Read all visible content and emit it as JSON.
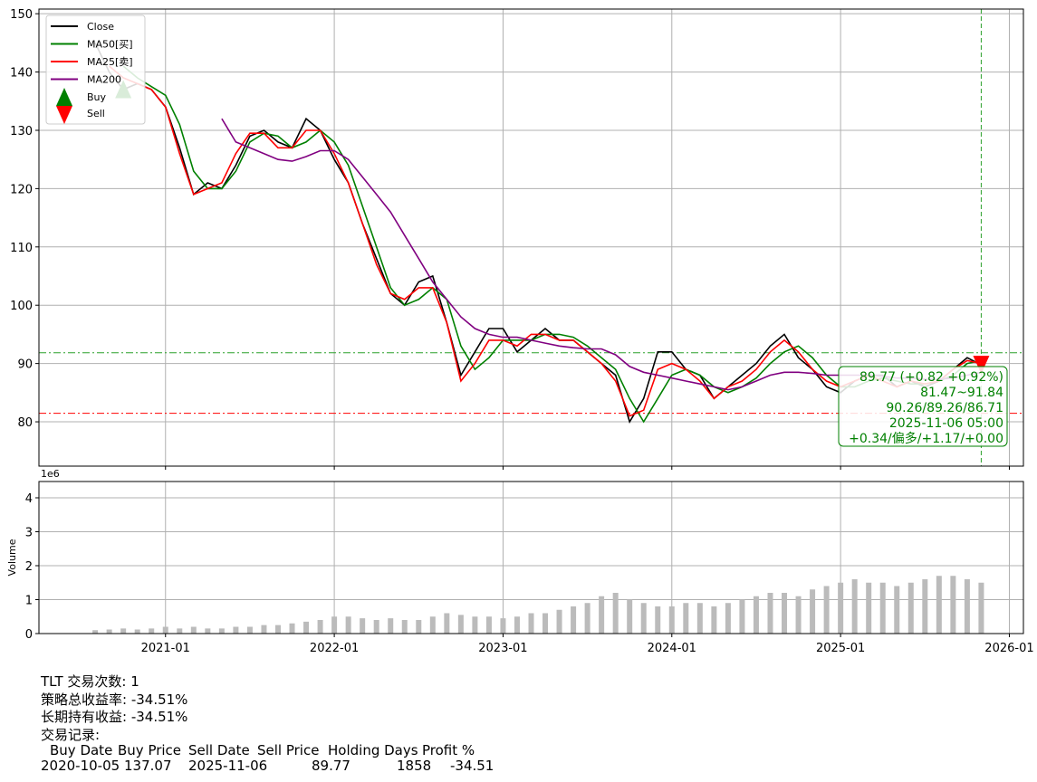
{
  "chart_data": [
    {
      "type": "line",
      "x": [
        "2020-08",
        "2020-09",
        "2020-10",
        "2020-11",
        "2020-12",
        "2021-01",
        "2021-02",
        "2021-03",
        "2021-04",
        "2021-05",
        "2021-06",
        "2021-07",
        "2021-08",
        "2021-09",
        "2021-10",
        "2021-11",
        "2021-12",
        "2022-01",
        "2022-02",
        "2022-03",
        "2022-04",
        "2022-05",
        "2022-06",
        "2022-07",
        "2022-08",
        "2022-09",
        "2022-10",
        "2022-11",
        "2022-12",
        "2023-01",
        "2023-02",
        "2023-03",
        "2023-04",
        "2023-05",
        "2023-06",
        "2023-07",
        "2023-08",
        "2023-09",
        "2023-10",
        "2023-11",
        "2023-12",
        "2024-01",
        "2024-02",
        "2024-03",
        "2024-04",
        "2024-05",
        "2024-06",
        "2024-07",
        "2024-08",
        "2024-09",
        "2024-10",
        "2024-11",
        "2024-12",
        "2025-01",
        "2025-02",
        "2025-03",
        "2025-04",
        "2025-05",
        "2025-06",
        "2025-07",
        "2025-08",
        "2025-09",
        "2025-10",
        "2025-11"
      ],
      "series": [
        {
          "name": "Close",
          "color": "#000000",
          "values": [
            145,
            140,
            137,
            138,
            137,
            134,
            127,
            119,
            121,
            120,
            124,
            129,
            130,
            128,
            127,
            132,
            130,
            125,
            121,
            114,
            108,
            102,
            100,
            104,
            105,
            97,
            88,
            92,
            96,
            96,
            92,
            94,
            96,
            94,
            94,
            92,
            90,
            88,
            80,
            84,
            92,
            92,
            89,
            88,
            84,
            86,
            88,
            90,
            93,
            95,
            91,
            89,
            86,
            85,
            87,
            88,
            88,
            86,
            87,
            86,
            87,
            89,
            91,
            89.77
          ]
        },
        {
          "name": "MA50[买]",
          "color": "#008000",
          "values": [
            null,
            null,
            141,
            139,
            137.5,
            136,
            131,
            123,
            120,
            120,
            123,
            128,
            129.5,
            129,
            127,
            128,
            130,
            128,
            124,
            117,
            110,
            103,
            100,
            101,
            103,
            101,
            93,
            89,
            91,
            94,
            94,
            94,
            95,
            95,
            94.5,
            93,
            91,
            89,
            84,
            80,
            84,
            88,
            89,
            88,
            86,
            85,
            86,
            87.5,
            90,
            92,
            93,
            91,
            88,
            86,
            86,
            87,
            87.5,
            87,
            86.5,
            86.5,
            87,
            88,
            90,
            90.5
          ]
        },
        {
          "name": "MA25[卖]",
          "color": "#ff0000",
          "values": [
            null,
            141,
            139,
            138,
            137,
            134,
            126,
            119,
            120,
            121,
            126,
            129.5,
            129.5,
            127,
            127,
            130,
            130,
            126,
            121,
            114,
            107,
            102,
            101,
            103,
            103,
            97,
            87,
            90,
            94,
            94,
            93,
            95,
            95,
            94,
            94,
            92,
            90,
            87,
            81,
            82,
            89,
            90,
            89,
            87,
            84,
            86,
            87,
            89,
            92,
            94,
            92,
            89,
            87,
            86,
            87,
            88,
            87,
            86,
            87,
            86.5,
            87,
            89,
            90.5,
            90
          ]
        },
        {
          "name": "MA200",
          "color": "#800080",
          "values": [
            null,
            null,
            null,
            null,
            null,
            null,
            null,
            null,
            null,
            132,
            128,
            127,
            126,
            125,
            124.7,
            125.5,
            126.5,
            126.5,
            125,
            122,
            119,
            116,
            112,
            108,
            104,
            101,
            98,
            96,
            95,
            94.5,
            94.5,
            94,
            93.5,
            93,
            92.7,
            92.5,
            92.5,
            91.5,
            89.5,
            88.5,
            88,
            87.5,
            87,
            86.5,
            86,
            85.5,
            86,
            87,
            88,
            88.5,
            88.5,
            88.3,
            88,
            88,
            88,
            88,
            87.8,
            87.5,
            87.5,
            87.3,
            87.3,
            87.5,
            88,
            88.5
          ]
        }
      ],
      "markers": [
        {
          "name": "Buy",
          "color": "#008000",
          "x": [
            "2020-10"
          ],
          "values": [
            137.07
          ]
        },
        {
          "name": "Sell",
          "color": "#ff0000",
          "x": [
            "2025-11"
          ],
          "values": [
            89.77
          ]
        }
      ],
      "hlines": [
        {
          "value": 91.84,
          "color": "#2ca02c"
        },
        {
          "value": 81.47,
          "color": "#ff0000"
        }
      ],
      "vline": "2025-11",
      "annotation": [
        "89.77 (+0.82 +0.92%)",
        "81.47~91.84",
        "90.26/89.26/86.71",
        "2025-11-06 05:00",
        "+0.34/偏多/+1.17/+0.00"
      ],
      "xlim": [
        "2020-04",
        "2026-02"
      ],
      "xticks": [
        "2021-01",
        "2022-01",
        "2023-01",
        "2024-01",
        "2025-01",
        "2026-01"
      ],
      "ylim": [
        72.4,
        150.8
      ],
      "yticks": [
        80,
        90,
        100,
        110,
        120,
        130,
        140,
        150
      ],
      "grid": true,
      "legend": "upper left"
    },
    {
      "type": "bar",
      "x": [
        "2020-08",
        "2020-09",
        "2020-10",
        "2020-11",
        "2020-12",
        "2021-01",
        "2021-02",
        "2021-03",
        "2021-04",
        "2021-05",
        "2021-06",
        "2021-07",
        "2021-08",
        "2021-09",
        "2021-10",
        "2021-11",
        "2021-12",
        "2022-01",
        "2022-02",
        "2022-03",
        "2022-04",
        "2022-05",
        "2022-06",
        "2022-07",
        "2022-08",
        "2022-09",
        "2022-10",
        "2022-11",
        "2022-12",
        "2023-01",
        "2023-02",
        "2023-03",
        "2023-04",
        "2023-05",
        "2023-06",
        "2023-07",
        "2023-08",
        "2023-09",
        "2023-10",
        "2023-11",
        "2023-12",
        "2024-01",
        "2024-02",
        "2024-03",
        "2024-04",
        "2024-05",
        "2024-06",
        "2024-07",
        "2024-08",
        "2024-09",
        "2024-10",
        "2024-11",
        "2024-12",
        "2025-01",
        "2025-02",
        "2025-03",
        "2025-04",
        "2025-05",
        "2025-06",
        "2025-07",
        "2025-08",
        "2025-09",
        "2025-10",
        "2025-11"
      ],
      "values": [
        0.1,
        0.12,
        0.15,
        0.12,
        0.15,
        0.2,
        0.15,
        0.2,
        0.15,
        0.15,
        0.2,
        0.2,
        0.25,
        0.25,
        0.3,
        0.35,
        0.4,
        0.5,
        0.5,
        0.45,
        0.4,
        0.45,
        0.4,
        0.4,
        0.5,
        0.6,
        0.55,
        0.5,
        0.5,
        0.45,
        0.5,
        0.6,
        0.6,
        0.7,
        0.8,
        0.9,
        1.1,
        1.2,
        1.0,
        0.9,
        0.8,
        0.8,
        0.9,
        0.9,
        0.8,
        0.9,
        1.0,
        1.1,
        1.2,
        1.2,
        1.1,
        1.3,
        1.4,
        1.5,
        1.6,
        1.5,
        1.5,
        1.4,
        1.5,
        1.6,
        1.7,
        1.7,
        1.6,
        1.5
      ],
      "color": "#bbbbbb",
      "ylabel": "Volume",
      "offset_label": "1e6",
      "xlim": [
        "2020-04",
        "2026-02"
      ],
      "xticks": [
        "2021-01",
        "2022-01",
        "2023-01",
        "2024-01",
        "2025-01",
        "2026-01"
      ],
      "ylim": [
        0,
        4.48
      ],
      "yticks": [
        0,
        1,
        2,
        3,
        4
      ],
      "grid": true
    }
  ],
  "summary": {
    "lines": [
      "TLT 交易次数: 1",
      "策略总收益率: -34.51%",
      "长期持有收益: -34.51%",
      "交易记录:"
    ],
    "table": {
      "header": [
        "Buy Date",
        "Buy Price",
        "Sell Date",
        "Sell Price",
        "Holding Days",
        "Profit %"
      ],
      "rows": [
        [
          "2020-10-05",
          "137.07",
          "2025-11-06",
          "89.77",
          "1858",
          "-34.51"
        ]
      ]
    }
  }
}
